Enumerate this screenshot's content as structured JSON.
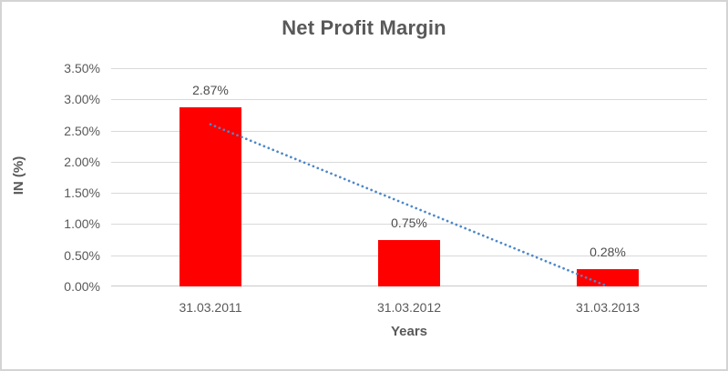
{
  "frame": {
    "border_color": "#d4d4d4",
    "background": "#ffffff"
  },
  "colors": {
    "bar": "#ff0000",
    "trendline": "#4e88c9",
    "gridline": "#d9d9d9",
    "axis_line": "#c9c9c9",
    "text": "#595959",
    "data_label": "#4d4d4d"
  },
  "chart_data": {
    "type": "bar",
    "title": "Net Profit Margin",
    "xlabel": "Years",
    "ylabel": "IN (%)",
    "categories": [
      "31.03.2011",
      "31.03.2012",
      "31.03.2013"
    ],
    "values": [
      2.87,
      0.75,
      0.28
    ],
    "data_labels": [
      "2.87%",
      "0.75%",
      "0.28%"
    ],
    "ylim": [
      0,
      3.5
    ],
    "ytick_step": 0.5,
    "ytick_labels": [
      "0.00%",
      "0.50%",
      "1.00%",
      "1.50%",
      "2.00%",
      "2.50%",
      "3.00%",
      "3.50%"
    ],
    "grid": true,
    "legend": "none",
    "trendline": {
      "type": "linear",
      "style": "dotted",
      "start_value": 2.6,
      "end_value": 0.0
    }
  }
}
